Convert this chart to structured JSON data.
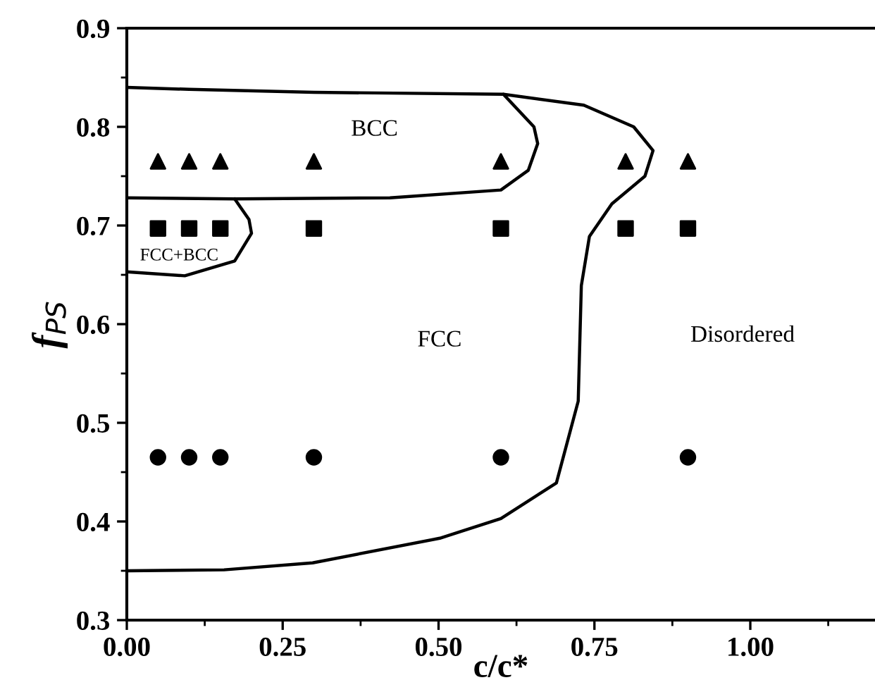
{
  "chart_data": {
    "type": "scatter",
    "xlabel": "c/c*",
    "ylabel": "f$_{PS}$",
    "xlim": [
      0,
      1.2
    ],
    "ylim": [
      0.3,
      0.9
    ],
    "xticks": [
      {
        "value": 0,
        "label": "0.00"
      },
      {
        "value": 0.25,
        "label": "0.25"
      },
      {
        "value": 0.5,
        "label": "0.50"
      },
      {
        "value": 0.75,
        "label": "0.75"
      },
      {
        "value": 1,
        "label": "1.00"
      }
    ],
    "yticks": [
      0.3,
      0.4,
      0.5,
      0.6,
      0.7,
      0.8,
      0.9
    ],
    "grid": false,
    "legend": false,
    "series": [
      {
        "marker": "triangle",
        "color": "#000000",
        "x": [
          0.05,
          0.1,
          0.15,
          0.3,
          0.6,
          0.8,
          0.9
        ],
        "values": [
          0.765,
          0.765,
          0.765,
          0.765,
          0.765,
          0.765,
          0.765
        ]
      },
      {
        "marker": "square",
        "color": "#000000",
        "x": [
          0.05,
          0.1,
          0.15,
          0.3,
          0.6,
          0.8,
          0.9
        ],
        "values": [
          0.697,
          0.697,
          0.697,
          0.697,
          0.697,
          0.697,
          0.697
        ]
      },
      {
        "marker": "circle",
        "color": "#000000",
        "x": [
          0.05,
          0.1,
          0.15,
          0.3,
          0.6,
          0.9
        ],
        "values": [
          0.465,
          0.465,
          0.465,
          0.465,
          0.465,
          0.465
        ]
      },
      {
        "type": "line",
        "marker": "none",
        "line_style": "solid",
        "color": "#000000",
        "x": [
          0,
          0.1,
          0.3,
          0.604,
          0.733,
          0.813,
          0.844,
          0.831,
          0.778,
          0.742,
          0.729,
          0.724,
          0.689,
          0.6,
          0.502,
          0.298,
          0.156,
          0
        ],
        "values": [
          0.84,
          0.838,
          0.835,
          0.833,
          0.822,
          0.8,
          0.776,
          0.75,
          0.722,
          0.689,
          0.639,
          0.522,
          0.439,
          0.403,
          0.383,
          0.358,
          0.351,
          0.35
        ]
      },
      {
        "type": "line",
        "marker": "none",
        "line_style": "solid",
        "color": "#000000",
        "x": [
          0.604,
          0.653,
          0.659,
          0.644,
          0.6,
          0.422,
          0.173,
          0
        ],
        "values": [
          0.833,
          0.8,
          0.783,
          0.756,
          0.736,
          0.728,
          0.727,
          0.728
        ]
      },
      {
        "type": "line",
        "marker": "none",
        "line_style": "solid",
        "color": "#000000",
        "x": [
          0.173,
          0.196,
          0.2,
          0.173,
          0.093,
          0
        ],
        "values": [
          0.727,
          0.706,
          0.692,
          0.664,
          0.649,
          0.653
        ]
      }
    ],
    "annotations": [
      "BCC",
      "FCC+BCC",
      "FCC",
      "Disordered"
    ]
  }
}
